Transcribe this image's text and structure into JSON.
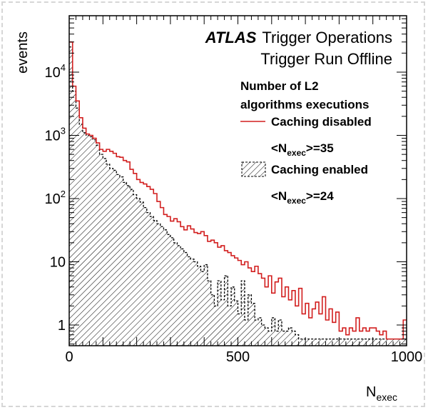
{
  "chart_data": {
    "type": "histogram",
    "x_axis": {
      "label": "N",
      "label_sub": "exec",
      "range": [
        0,
        1000
      ],
      "ticks": [
        0,
        500,
        1000
      ],
      "tick_labels": [
        "0",
        "500",
        "1000"
      ]
    },
    "y_axis": {
      "label": "events",
      "scale": "log",
      "range": [
        0.5,
        60000
      ],
      "ticks": [
        1,
        10,
        100,
        1000,
        10000
      ],
      "tick_labels": [
        {
          "base": "1",
          "exp": ""
        },
        {
          "base": "10",
          "exp": ""
        },
        {
          "base": "10",
          "exp": "2"
        },
        {
          "base": "10",
          "exp": "3"
        },
        {
          "base": "10",
          "exp": "4"
        }
      ]
    },
    "banner": {
      "experiment": "ATLAS",
      "line1": "Trigger Operations",
      "line2": "Trigger Run Offline"
    },
    "legend": {
      "header_line1": "Number of L2",
      "header_line2": "algorithms executions",
      "entries": [
        {
          "label": "Caching disabled",
          "mean_prefix": "<N",
          "mean_sub": "exec",
          "mean_suffix": ">=35"
        },
        {
          "label": "Caching enabled",
          "mean_prefix": "<N",
          "mean_sub": "exec",
          "mean_suffix": ">=24"
        }
      ]
    },
    "bin_width": 10,
    "series": [
      {
        "name": "Caching disabled",
        "style": "red line",
        "color": "#d21e1e",
        "values": [
          30000,
          6000,
          3500,
          1900,
          1300,
          1050,
          1000,
          900,
          760,
          600,
          560,
          600,
          560,
          520,
          460,
          450,
          400,
          380,
          290,
          250,
          200,
          180,
          170,
          155,
          140,
          120,
          90,
          72,
          56,
          52,
          44,
          48,
          43,
          36,
          32,
          37,
          33,
          29,
          28,
          30,
          26,
          21,
          22,
          20,
          17,
          18,
          15,
          14,
          12.5,
          11.5,
          10.5,
          9,
          10,
          8,
          7,
          8.5,
          6.5,
          5.5,
          4,
          6,
          3.2,
          4.8,
          5.5,
          2.8,
          4,
          2.5,
          3.5,
          2,
          3.8,
          1.5,
          2.2,
          1.3,
          1.8,
          2.3,
          1.5,
          2.8,
          1.2,
          1.8,
          1.1,
          1.6,
          0.8,
          0.9,
          0.7,
          0.9,
          0.8,
          1.3,
          0.8,
          0.9,
          0.8,
          0.9,
          0.9,
          0.8,
          0.7,
          0.8,
          0.6,
          0.6,
          0.6,
          0.6,
          0.6,
          1.2
        ]
      },
      {
        "name": "Caching enabled",
        "style": "black dashed, hatched fill",
        "color": "#000000",
        "values": [
          25000,
          5000,
          2700,
          1500,
          1100,
          1000,
          950,
          850,
          700,
          500,
          430,
          350,
          300,
          280,
          240,
          220,
          180,
          160,
          140,
          115,
          100,
          88,
          72,
          60,
          52,
          45,
          40,
          36,
          32,
          27,
          24,
          20,
          18,
          16,
          14,
          12,
          11,
          10,
          8.5,
          7,
          9,
          5,
          3,
          2,
          5,
          2.5,
          6,
          2,
          4,
          2.4,
          1.5,
          5,
          1.2,
          3,
          2.2,
          1.2,
          1.3,
          1.0,
          0.9,
          0.8,
          1.3,
          0.8,
          1.2,
          0.8,
          0.8,
          0.9,
          0.8,
          0.7,
          0.6,
          0.6,
          0.6,
          0.6,
          0.6,
          0.6,
          0.6,
          0.6,
          0.6,
          0.6,
          0.6,
          0.6,
          0.6,
          0.6,
          0.6,
          0.6,
          0.6,
          0.6,
          0.6,
          0.6,
          0.6,
          0.6,
          0.6,
          0.6,
          0.6,
          0.6,
          0.6,
          0.6,
          0.6,
          0.6,
          0.6,
          0.6
        ]
      }
    ]
  }
}
